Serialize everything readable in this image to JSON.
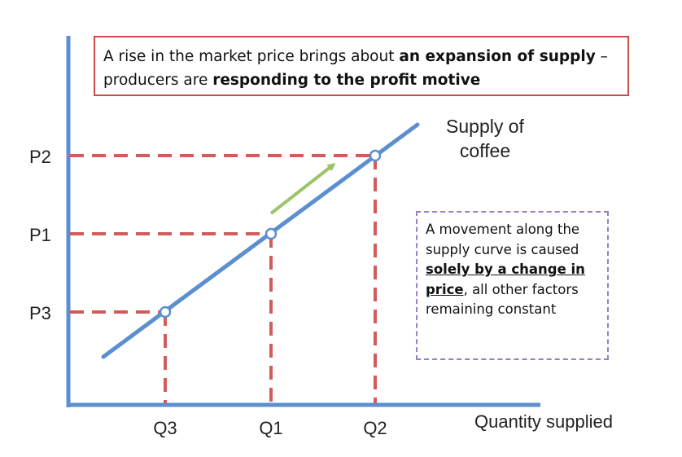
{
  "heading": {
    "part1": "A rise in the market price brings about ",
    "part2_bold": "an expansion of supply",
    "part3": " – producers are ",
    "part4_bold": "responding to the profit motive"
  },
  "note": {
    "part1": "A movement along the supply curve is caused ",
    "part2_bold_underlined": "solely by a change in price",
    "part3": ", all other factors remaining constant"
  },
  "curve_label": [
    "Supply of",
    "coffee"
  ],
  "x_axis_label": "Quantity supplied",
  "price_levels": [
    "P2",
    "P1",
    "P3"
  ],
  "quantity_levels": [
    "Q3",
    "Q1",
    "Q2"
  ],
  "colors": {
    "axes": "#5b8fd0",
    "supply_curve": "#5b8fd0",
    "guides": "#d05c5c",
    "arrow": "#9bc46a",
    "heading_border": "#d04a4a",
    "note_border": "#9a7fc4"
  }
}
